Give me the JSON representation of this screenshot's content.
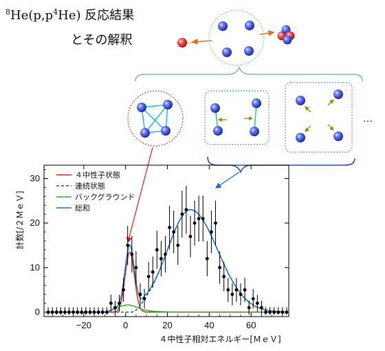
{
  "header": {
    "mass_number": "8",
    "title_main": "He(p,p",
    "title_sup": "4",
    "title_end": "He) ",
    "title_jp": "反応結果",
    "subtitle": "とその解釈"
  },
  "diagram": {
    "ellipsis": "…"
  },
  "colors": {
    "four_n": "#d03020",
    "continuum": "#2050c0",
    "background": "#30b030",
    "total": "#2070d0",
    "data": "#000000"
  },
  "chart_data": {
    "type": "scatter",
    "xlabel": "４中性子相対エネルギー[ＭｅＶ]",
    "ylabel": "計数[/２ＭｅＶ]",
    "xlim": [
      -39,
      78
    ],
    "ylim": [
      -1,
      33
    ],
    "xticks": [
      -20,
      0,
      20,
      40,
      60
    ],
    "yticks": [
      0,
      10,
      20,
      30
    ],
    "legend_position": "top-left",
    "legend": [
      {
        "label": "４中性子状態",
        "style": "solid",
        "color": "#d03020"
      },
      {
        "label": "連続状態",
        "style": "dashed",
        "color": "#2050c0"
      },
      {
        "label": "バックグラウンド",
        "style": "solid",
        "color": "#30b030"
      },
      {
        "label": "総和",
        "style": "solid",
        "color": "#2070d0"
      }
    ],
    "points": [
      {
        "x": -37,
        "y": 0
      },
      {
        "x": -35,
        "y": 0
      },
      {
        "x": -33,
        "y": 0
      },
      {
        "x": -31,
        "y": 0
      },
      {
        "x": -29,
        "y": 0
      },
      {
        "x": -27,
        "y": 0
      },
      {
        "x": -25,
        "y": 0
      },
      {
        "x": -23,
        "y": 0
      },
      {
        "x": -21,
        "y": 0
      },
      {
        "x": -19,
        "y": 0
      },
      {
        "x": -17,
        "y": 0
      },
      {
        "x": -15,
        "y": 0
      },
      {
        "x": -13,
        "y": 0
      },
      {
        "x": -11,
        "y": 0
      },
      {
        "x": -9,
        "y": 0
      },
      {
        "x": -7,
        "y": 2
      },
      {
        "x": -5,
        "y": 1
      },
      {
        "x": -3,
        "y": 2
      },
      {
        "x": -1,
        "y": 5
      },
      {
        "x": 1,
        "y": 15
      },
      {
        "x": 3,
        "y": 13
      },
      {
        "x": 5,
        "y": 10
      },
      {
        "x": 7,
        "y": 4
      },
      {
        "x": 9,
        "y": 3
      },
      {
        "x": 11,
        "y": 8
      },
      {
        "x": 13,
        "y": 9
      },
      {
        "x": 15,
        "y": 14
      },
      {
        "x": 17,
        "y": 12
      },
      {
        "x": 19,
        "y": 13
      },
      {
        "x": 21,
        "y": 19
      },
      {
        "x": 23,
        "y": 18
      },
      {
        "x": 25,
        "y": 15
      },
      {
        "x": 27,
        "y": 22
      },
      {
        "x": 29,
        "y": 23
      },
      {
        "x": 31,
        "y": 17
      },
      {
        "x": 33,
        "y": 20
      },
      {
        "x": 35,
        "y": 21
      },
      {
        "x": 37,
        "y": 21
      },
      {
        "x": 39,
        "y": 12
      },
      {
        "x": 41,
        "y": 18
      },
      {
        "x": 43,
        "y": 20
      },
      {
        "x": 45,
        "y": 10
      },
      {
        "x": 47,
        "y": 8
      },
      {
        "x": 49,
        "y": 5
      },
      {
        "x": 51,
        "y": 4
      },
      {
        "x": 53,
        "y": 5
      },
      {
        "x": 55,
        "y": 4
      },
      {
        "x": 57,
        "y": 5
      },
      {
        "x": 59,
        "y": 1
      },
      {
        "x": 61,
        "y": 3
      },
      {
        "x": 63,
        "y": 2
      },
      {
        "x": 65,
        "y": 1
      },
      {
        "x": 67,
        "y": 0
      },
      {
        "x": 69,
        "y": 0
      },
      {
        "x": 71,
        "y": 0
      },
      {
        "x": 73,
        "y": 0
      },
      {
        "x": 75,
        "y": 0
      },
      {
        "x": 77,
        "y": 0
      }
    ]
  }
}
